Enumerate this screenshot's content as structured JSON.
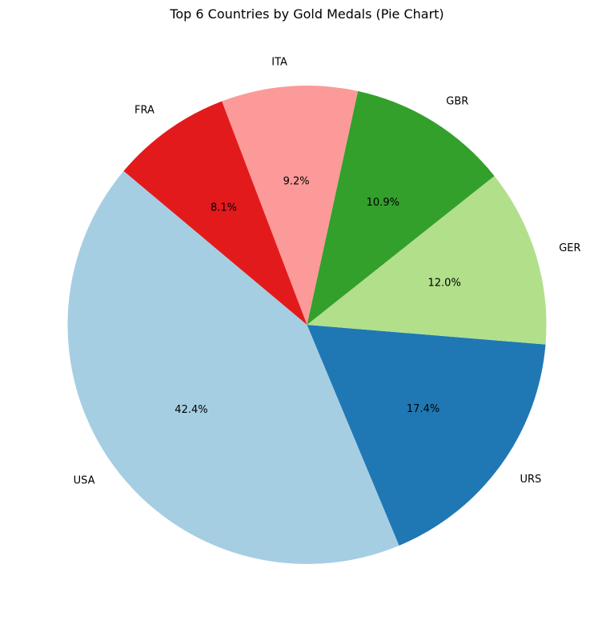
{
  "chart_data": {
    "type": "pie",
    "title": "Top 6 Countries by Gold Medals (Pie Chart)",
    "categories": [
      "USA",
      "URS",
      "GER",
      "GBR",
      "ITA",
      "FRA"
    ],
    "values": [
      42.4,
      17.4,
      12.0,
      10.9,
      9.2,
      8.1
    ],
    "percent_labels": [
      "42.4%",
      "17.4%",
      "12.0%",
      "10.9%",
      "9.2%",
      "8.1%"
    ],
    "colors": [
      "#a6cee3",
      "#1f78b4",
      "#b2df8a",
      "#33a02c",
      "#fb9a99",
      "#e31a1c"
    ],
    "start_angle_deg": 140,
    "direction": "counterclockwise",
    "legend": "none"
  }
}
